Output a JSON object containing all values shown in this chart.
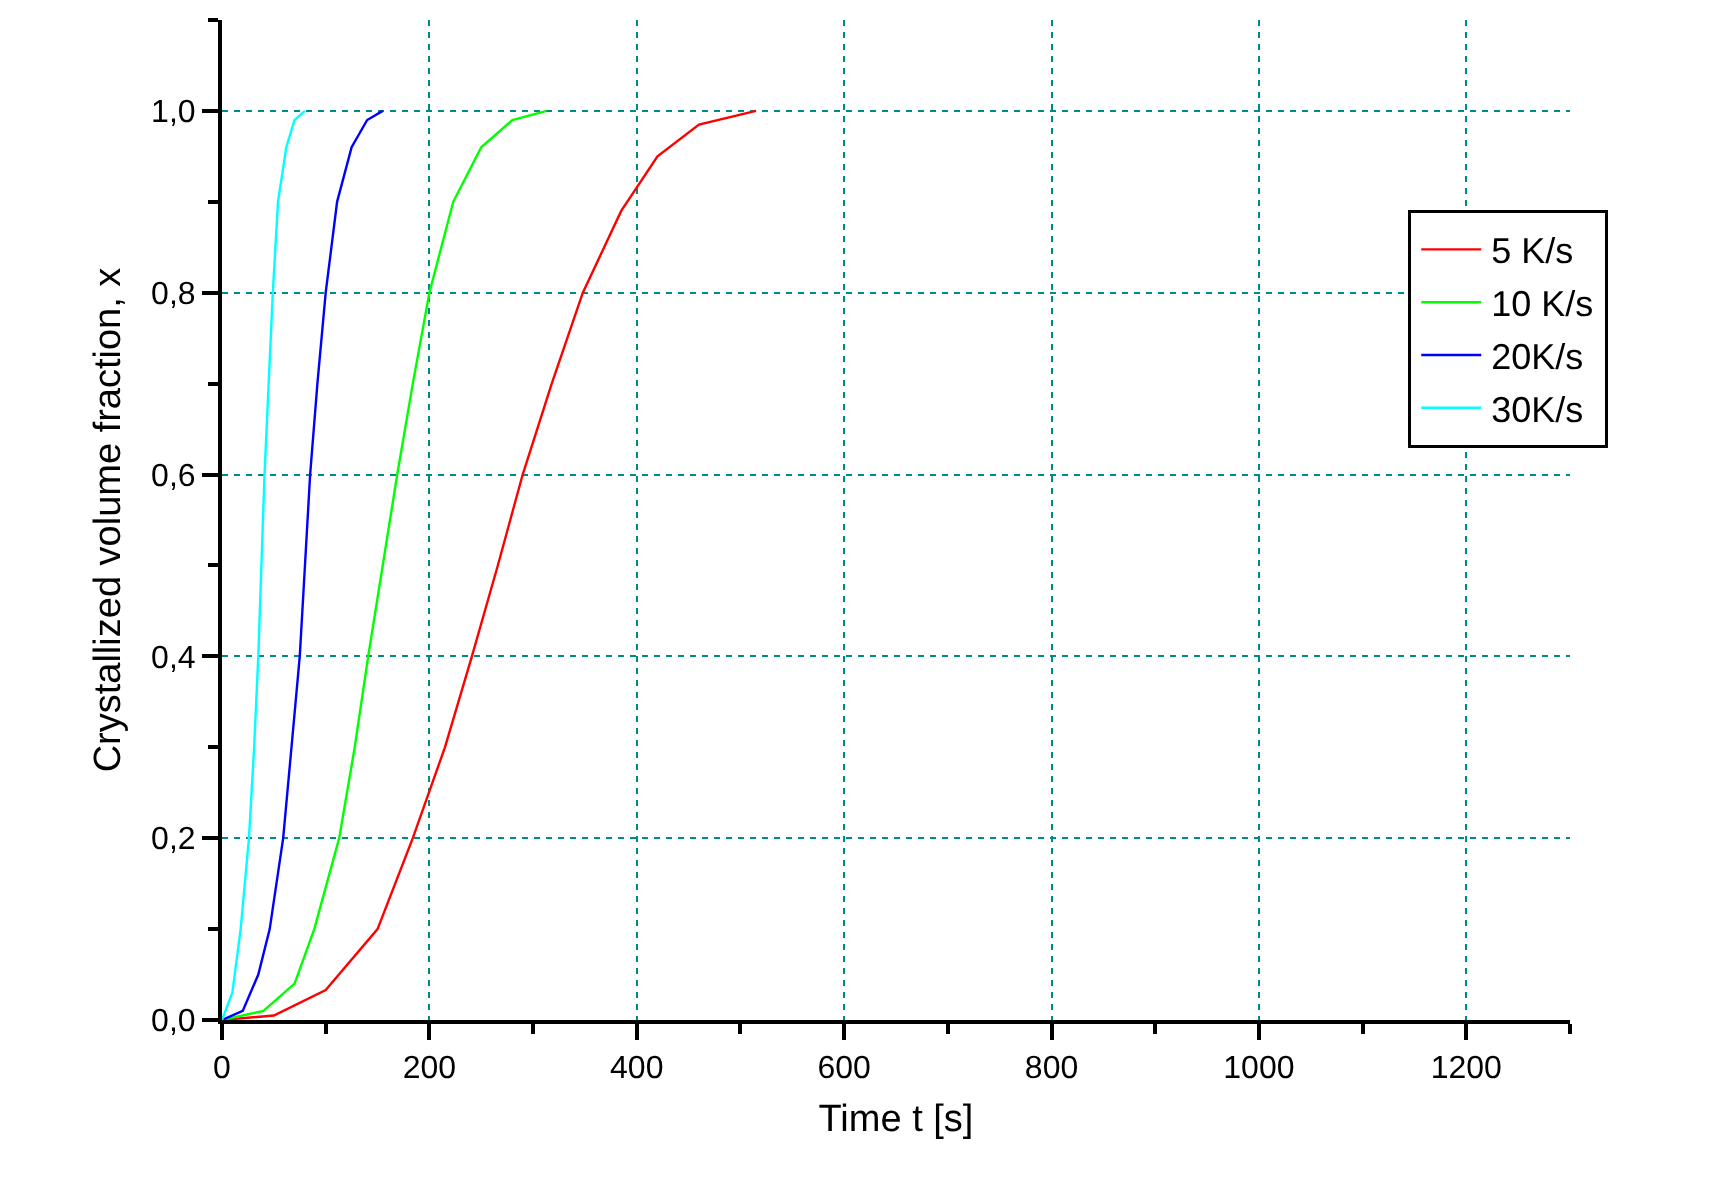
{
  "chart_data": {
    "type": "line",
    "xlabel": "Time t [s]",
    "ylabel": "Crystallized volume fraction, x",
    "xlim": [
      0,
      1300
    ],
    "xticks": [
      0,
      200,
      400,
      600,
      800,
      1000,
      1200
    ],
    "ylim": [
      0,
      1.1
    ],
    "yticks": [
      {
        "value": 0,
        "label": "0,0"
      },
      {
        "value": 0.2,
        "label": "0,2"
      },
      {
        "value": 0.4,
        "label": "0,4"
      },
      {
        "value": 0.6,
        "label": "0,6"
      },
      {
        "value": 0.8,
        "label": "0,8"
      },
      {
        "value": 1.0,
        "label": "1,0"
      }
    ],
    "grid": true,
    "legend": "right",
    "line_style": "solid",
    "series": [
      {
        "name": "5 K/s",
        "color": "#ff0000",
        "x": [
          0,
          50,
          100,
          150,
          184,
          215,
          241,
          266,
          290,
          318,
          348,
          385,
          420,
          460,
          515
        ],
        "values": [
          0,
          0.005,
          0.033,
          0.1,
          0.2,
          0.3,
          0.4,
          0.5,
          0.6,
          0.7,
          0.8,
          0.89,
          0.95,
          0.985,
          1.0
        ]
      },
      {
        "name": "10 K/s",
        "color": "#00ff00",
        "x": [
          0,
          40,
          70,
          89,
          113,
          128,
          141,
          155,
          169,
          184,
          200,
          223,
          250,
          280,
          313
        ],
        "values": [
          0,
          0.01,
          0.04,
          0.1,
          0.2,
          0.3,
          0.4,
          0.5,
          0.6,
          0.7,
          0.8,
          0.9,
          0.96,
          0.99,
          1.0
        ]
      },
      {
        "name": "20K/s",
        "color": "#0000ff",
        "x": [
          0,
          20,
          35,
          46,
          59,
          67,
          75,
          80,
          85,
          92,
          100,
          111,
          125,
          140,
          155
        ],
        "values": [
          0,
          0.01,
          0.05,
          0.1,
          0.2,
          0.3,
          0.4,
          0.5,
          0.6,
          0.7,
          0.8,
          0.9,
          0.96,
          0.99,
          1.0
        ]
      },
      {
        "name": "30K/s",
        "color": "#00ffff",
        "x": [
          0,
          10,
          18,
          26,
          31,
          35,
          38,
          41,
          45,
          49,
          54,
          62,
          70,
          80
        ],
        "values": [
          0,
          0.03,
          0.1,
          0.2,
          0.3,
          0.4,
          0.5,
          0.6,
          0.7,
          0.8,
          0.9,
          0.96,
          0.99,
          1.0
        ]
      }
    ]
  }
}
